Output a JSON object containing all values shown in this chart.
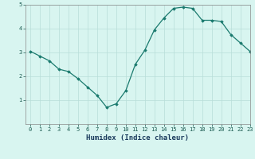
{
  "x": [
    0,
    1,
    2,
    3,
    4,
    5,
    6,
    7,
    8,
    9,
    10,
    11,
    12,
    13,
    14,
    15,
    16,
    17,
    18,
    19,
    20,
    21,
    22,
    23
  ],
  "y": [
    3.05,
    2.85,
    2.65,
    2.3,
    2.2,
    1.9,
    1.55,
    1.2,
    0.7,
    0.85,
    1.4,
    2.5,
    3.1,
    3.95,
    4.45,
    4.85,
    4.9,
    4.85,
    4.35,
    4.35,
    4.3,
    3.75,
    3.4,
    3.05
  ],
  "line_color": "#1a7a6e",
  "marker": "D",
  "marker_size": 1.8,
  "bg_color": "#d8f5f0",
  "grid_color": "#b8ddd8",
  "xlabel": "Humidex (Indice chaleur)",
  "ylim": [
    0,
    5
  ],
  "xlim": [
    -0.5,
    23
  ],
  "yticks": [
    1,
    2,
    3,
    4,
    5
  ],
  "xticks": [
    0,
    1,
    2,
    3,
    4,
    5,
    6,
    7,
    8,
    9,
    10,
    11,
    12,
    13,
    14,
    15,
    16,
    17,
    18,
    19,
    20,
    21,
    22,
    23
  ],
  "tick_fontsize": 5.0,
  "xlabel_fontsize": 6.5,
  "line_width": 0.9,
  "spine_color": "#888888",
  "tick_color": "#1a5a50",
  "xlabel_color": "#1a3a5c"
}
